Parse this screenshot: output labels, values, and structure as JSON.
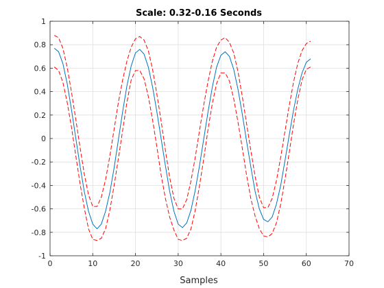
{
  "chart_data": {
    "type": "line",
    "title": "Scale: 0.32-0.16 Seconds",
    "xlabel": "Samples",
    "ylabel": "",
    "xlim": [
      0,
      70
    ],
    "ylim": [
      -1,
      1
    ],
    "xticks": [
      0,
      10,
      20,
      30,
      40,
      50,
      60,
      70
    ],
    "yticks": [
      -1,
      -0.8,
      -0.6,
      -0.4,
      -0.2,
      0,
      0.2,
      0.4,
      0.6,
      0.8,
      1
    ],
    "grid": true,
    "x": [
      1,
      2,
      3,
      4,
      5,
      6,
      7,
      8,
      9,
      10,
      11,
      12,
      13,
      14,
      15,
      16,
      17,
      18,
      19,
      20,
      21,
      22,
      23,
      24,
      25,
      26,
      27,
      28,
      29,
      30,
      31,
      32,
      33,
      34,
      35,
      36,
      37,
      38,
      39,
      40,
      41,
      42,
      43,
      44,
      45,
      46,
      47,
      48,
      49,
      50,
      51,
      52,
      53,
      54,
      55,
      56,
      57,
      58,
      59,
      60,
      61
    ],
    "series": [
      {
        "style": "solid",
        "color": "#0072BD",
        "values": [
          0.77,
          0.74,
          0.64,
          0.47,
          0.25,
          0.01,
          -0.23,
          -0.45,
          -0.62,
          -0.73,
          -0.77,
          -0.73,
          -0.62,
          -0.46,
          -0.25,
          -0.01,
          0.23,
          0.45,
          0.62,
          0.73,
          0.76,
          0.72,
          0.61,
          0.44,
          0.23,
          0.0,
          -0.23,
          -0.45,
          -0.62,
          -0.73,
          -0.76,
          -0.72,
          -0.61,
          -0.44,
          -0.23,
          0.0,
          0.23,
          0.44,
          0.61,
          0.71,
          0.74,
          0.7,
          0.59,
          0.42,
          0.21,
          -0.02,
          -0.24,
          -0.45,
          -0.6,
          -0.69,
          -0.71,
          -0.67,
          -0.56,
          -0.4,
          -0.19,
          0.03,
          0.24,
          0.42,
          0.56,
          0.65,
          0.68
        ]
      },
      {
        "style": "dashed",
        "color": "#FF0000",
        "values": [
          0.88,
          0.86,
          0.77,
          0.61,
          0.4,
          0.17,
          -0.07,
          -0.3,
          -0.48,
          -0.58,
          -0.58,
          -0.5,
          -0.35,
          -0.15,
          0.08,
          0.31,
          0.5,
          0.66,
          0.78,
          0.85,
          0.87,
          0.84,
          0.75,
          0.59,
          0.38,
          0.15,
          -0.1,
          -0.33,
          -0.51,
          -0.6,
          -0.6,
          -0.52,
          -0.36,
          -0.16,
          0.07,
          0.29,
          0.49,
          0.66,
          0.78,
          0.84,
          0.86,
          0.82,
          0.73,
          0.57,
          0.36,
          0.13,
          -0.1,
          -0.32,
          -0.5,
          -0.59,
          -0.59,
          -0.51,
          -0.36,
          -0.16,
          0.06,
          0.28,
          0.48,
          0.64,
          0.75,
          0.81,
          0.83
        ]
      },
      {
        "style": "dashed",
        "color": "#FF0000",
        "values": [
          0.61,
          0.58,
          0.48,
          0.31,
          0.1,
          -0.14,
          -0.38,
          -0.59,
          -0.77,
          -0.86,
          -0.87,
          -0.85,
          -0.77,
          -0.61,
          -0.4,
          -0.17,
          0.07,
          0.31,
          0.5,
          0.58,
          0.58,
          0.51,
          0.36,
          0.16,
          -0.07,
          -0.31,
          -0.51,
          -0.67,
          -0.78,
          -0.86,
          -0.87,
          -0.85,
          -0.77,
          -0.61,
          -0.4,
          -0.17,
          0.08,
          0.3,
          0.47,
          0.56,
          0.56,
          0.49,
          0.34,
          0.14,
          -0.08,
          -0.31,
          -0.51,
          -0.66,
          -0.77,
          -0.83,
          -0.84,
          -0.81,
          -0.72,
          -0.56,
          -0.35,
          -0.12,
          0.12,
          0.33,
          0.5,
          0.59,
          0.61
        ]
      }
    ]
  }
}
